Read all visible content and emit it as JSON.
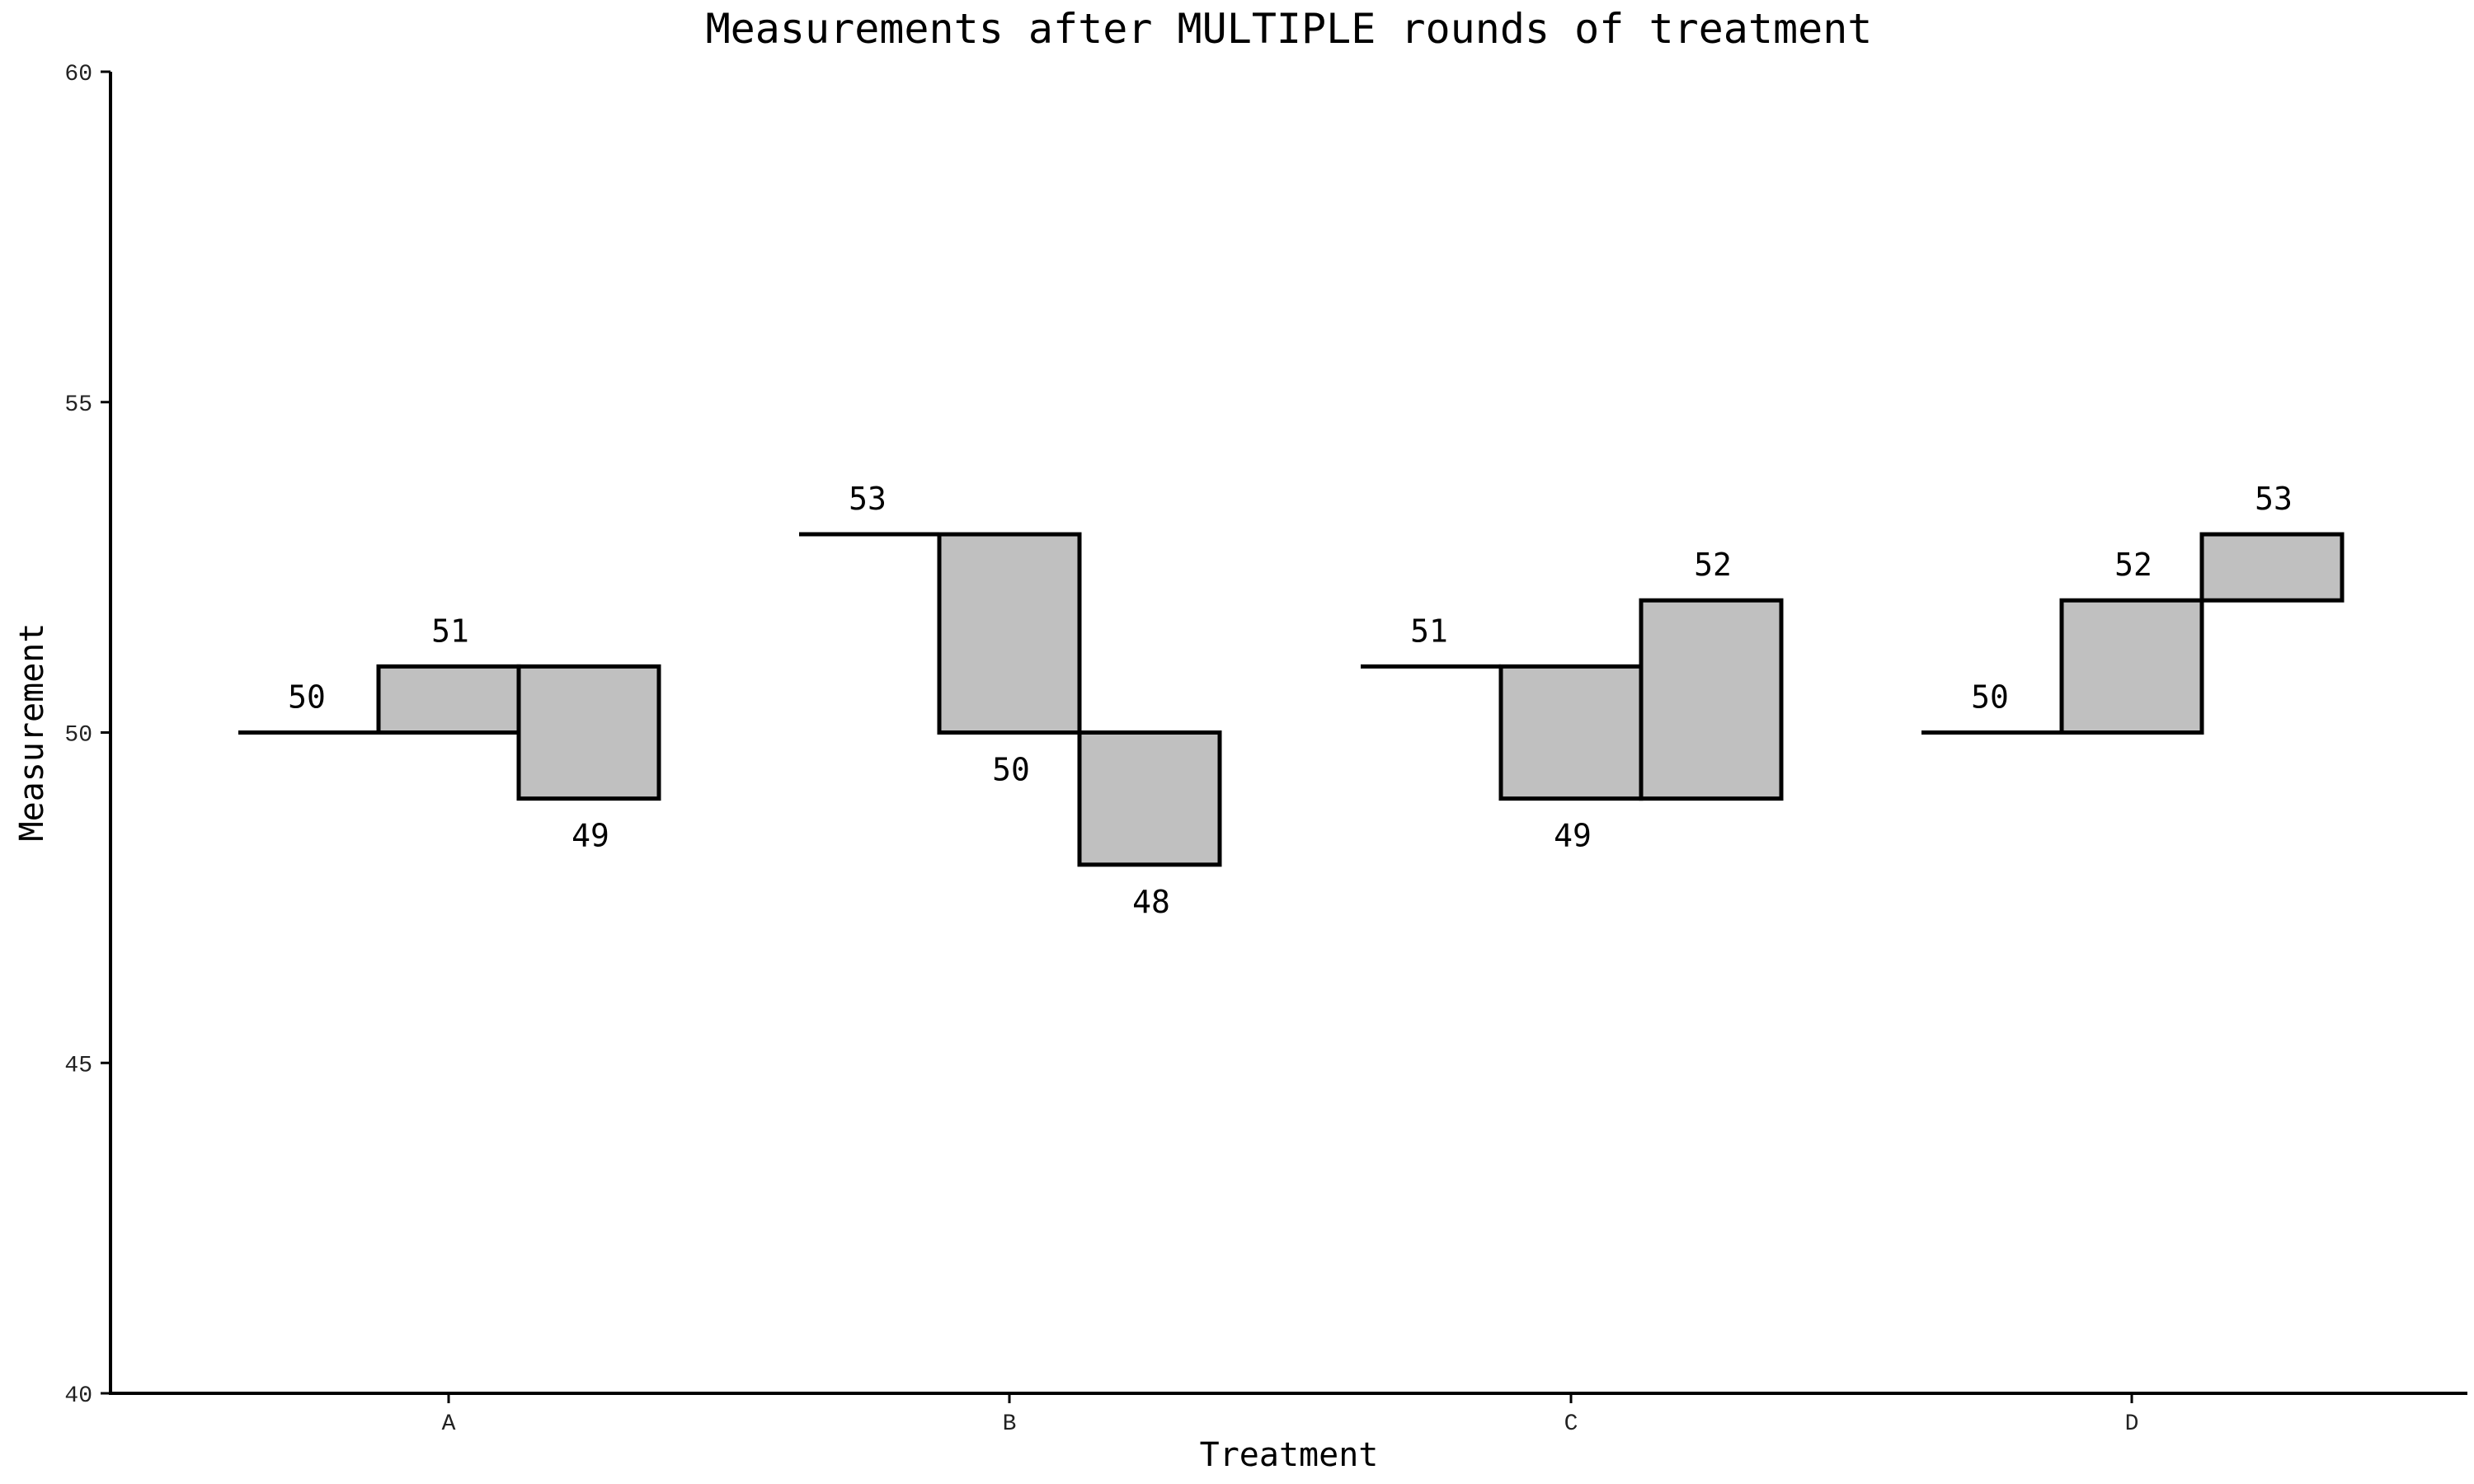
{
  "chart_data": {
    "type": "bar",
    "title": "Measurements after MULTIPLE rounds of treatment",
    "xlabel": "Treatment",
    "ylabel": "Measurement",
    "categories": [
      "A",
      "B",
      "C",
      "D"
    ],
    "series": [
      {
        "values": [
          50,
          53,
          51,
          50
        ]
      },
      {
        "values": [
          51,
          50,
          49,
          52
        ]
      },
      {
        "values": [
          49,
          48,
          52,
          53
        ]
      }
    ],
    "groups": [
      {
        "category": "A",
        "values": [
          50,
          51,
          49
        ]
      },
      {
        "category": "B",
        "values": [
          53,
          50,
          48
        ]
      },
      {
        "category": "C",
        "values": [
          51,
          49,
          52
        ]
      },
      {
        "category": "D",
        "values": [
          50,
          52,
          53
        ]
      }
    ],
    "ylim": [
      40,
      60
    ],
    "yticks": [
      40,
      45,
      50,
      55,
      60
    ],
    "grid": false,
    "bar_fill": "#c0c0c0",
    "stroke_color": "#000000"
  }
}
